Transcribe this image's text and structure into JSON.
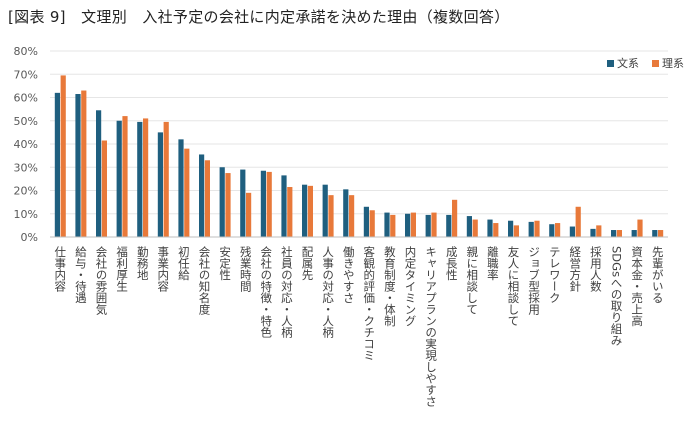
{
  "title": "[図表 9]　文理別　入社予定の会社に内定承諾を決めた理由（複数回答）",
  "chart_data": {
    "type": "bar",
    "categories": [
      "仕事内容",
      "給与・待遇",
      "会社の雰囲気",
      "福利厚生",
      "勤務地",
      "事業内容",
      "初任給",
      "会社の知名度",
      "安定性",
      "残業時間",
      "会社の特徴・特色",
      "社員の対応・人柄",
      "配属先",
      "人事の対応・人柄",
      "働きやすさ",
      "客観的評価・クチコミ",
      "教育制度・体制",
      "内定タイミング",
      "キャリアプランの実現しやすさ",
      "成長性",
      "親に相談して",
      "離職率",
      "友人に相談して",
      "ジョブ型採用",
      "テレワーク",
      "経営方針",
      "採用人数",
      "SDGsへの取り組み",
      "資本金・売上高",
      "先輩がいる"
    ],
    "series": [
      {
        "name": "文系",
        "color": "#1f5f7f",
        "values": [
          62,
          61.5,
          54.5,
          50,
          49.5,
          45,
          42,
          35.5,
          30,
          29,
          28.5,
          26.5,
          22.5,
          22.5,
          20.5,
          13,
          10.5,
          10,
          9.5,
          9.5,
          9,
          7.5,
          7,
          6.5,
          5.5,
          4.5,
          3.5,
          3,
          3,
          3
        ]
      },
      {
        "name": "理系",
        "color": "#e8793a",
        "values": [
          69.5,
          63,
          41.5,
          52,
          51,
          49.5,
          38,
          33,
          27.5,
          19,
          28,
          21.5,
          22,
          18,
          18,
          11.5,
          9.5,
          10.5,
          10.5,
          16,
          7.5,
          6,
          5,
          7,
          6,
          13,
          5,
          3,
          7.5,
          3
        ]
      }
    ],
    "ylim": [
      0,
      80
    ],
    "yticks": [
      "0%",
      "10%",
      "20%",
      "30%",
      "40%",
      "50%",
      "60%",
      "70%",
      "80%"
    ],
    "legend": "top-right"
  }
}
